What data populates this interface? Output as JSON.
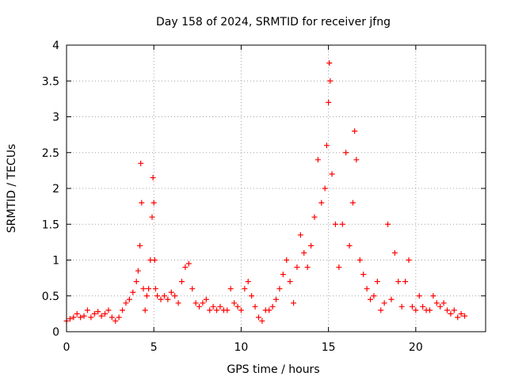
{
  "chart_data": {
    "type": "scatter",
    "title": "Day 158 of 2024, SRMTID for receiver jfng",
    "xlabel": "GPS time / hours",
    "ylabel": "SRMTID / TECUs",
    "xlim": [
      0,
      24
    ],
    "ylim": [
      0,
      4
    ],
    "xticks": [
      0,
      5,
      10,
      15,
      20
    ],
    "xtick_labels": [
      "0",
      "5",
      "10",
      "15",
      "20"
    ],
    "yticks": [
      0,
      0.5,
      1,
      1.5,
      2,
      2.5,
      3,
      3.5,
      4
    ],
    "ytick_labels": [
      "0",
      "0.5",
      "1",
      "1.5",
      "2",
      "2.5",
      "3",
      "3.5",
      "4"
    ],
    "grid": true,
    "marker": "+",
    "color": "#ff0000",
    "series": [
      {
        "name": "SRMTID",
        "x": [
          0.0,
          0.2,
          0.4,
          0.6,
          0.8,
          1.0,
          1.2,
          1.4,
          1.6,
          1.8,
          2.0,
          2.2,
          2.4,
          2.6,
          2.8,
          3.0,
          3.2,
          3.4,
          3.6,
          3.8,
          4.0,
          4.1,
          4.2,
          4.25,
          4.3,
          4.4,
          4.5,
          4.6,
          4.7,
          4.8,
          4.9,
          4.95,
          5.0,
          5.05,
          5.1,
          5.2,
          5.4,
          5.6,
          5.8,
          6.0,
          6.2,
          6.4,
          6.6,
          6.8,
          7.0,
          7.2,
          7.4,
          7.6,
          7.8,
          8.0,
          8.2,
          8.4,
          8.6,
          8.8,
          9.0,
          9.2,
          9.4,
          9.6,
          9.8,
          10.0,
          10.2,
          10.4,
          10.6,
          10.8,
          11.0,
          11.2,
          11.4,
          11.6,
          11.8,
          12.0,
          12.2,
          12.4,
          12.6,
          12.8,
          13.0,
          13.2,
          13.4,
          13.6,
          13.8,
          14.0,
          14.2,
          14.4,
          14.6,
          14.8,
          14.9,
          15.0,
          15.05,
          15.1,
          15.2,
          15.4,
          15.6,
          15.8,
          16.0,
          16.2,
          16.4,
          16.5,
          16.6,
          16.8,
          17.0,
          17.2,
          17.4,
          17.6,
          17.8,
          18.0,
          18.2,
          18.4,
          18.6,
          18.8,
          19.0,
          19.2,
          19.4,
          19.6,
          19.8,
          20.0,
          20.2,
          20.4,
          20.6,
          20.8,
          21.0,
          21.2,
          21.4,
          21.6,
          21.8,
          22.0,
          22.2,
          22.4,
          22.6,
          22.8
        ],
        "values": [
          0.15,
          0.18,
          0.2,
          0.25,
          0.2,
          0.22,
          0.3,
          0.2,
          0.25,
          0.28,
          0.22,
          0.25,
          0.3,
          0.2,
          0.15,
          0.2,
          0.3,
          0.4,
          0.45,
          0.55,
          0.7,
          0.85,
          1.2,
          2.35,
          1.8,
          0.6,
          0.3,
          0.5,
          0.6,
          1.0,
          1.6,
          2.15,
          1.8,
          1.0,
          0.6,
          0.5,
          0.45,
          0.5,
          0.45,
          0.55,
          0.5,
          0.4,
          0.7,
          0.9,
          0.95,
          0.6,
          0.4,
          0.35,
          0.4,
          0.45,
          0.3,
          0.35,
          0.3,
          0.35,
          0.3,
          0.3,
          0.6,
          0.4,
          0.35,
          0.3,
          0.6,
          0.7,
          0.5,
          0.35,
          0.2,
          0.15,
          0.3,
          0.3,
          0.35,
          0.45,
          0.6,
          0.8,
          1.0,
          0.7,
          0.4,
          0.9,
          1.35,
          1.1,
          0.9,
          1.2,
          1.6,
          2.4,
          1.8,
          2.0,
          2.6,
          3.2,
          3.75,
          3.5,
          2.2,
          1.5,
          0.9,
          1.5,
          2.5,
          1.2,
          1.8,
          2.8,
          2.4,
          1.0,
          0.8,
          0.6,
          0.45,
          0.5,
          0.7,
          0.3,
          0.4,
          1.5,
          0.45,
          1.1,
          0.7,
          0.35,
          0.7,
          1.0,
          0.35,
          0.3,
          0.5,
          0.35,
          0.3,
          0.3,
          0.5,
          0.4,
          0.35,
          0.4,
          0.3,
          0.25,
          0.3,
          0.2,
          0.25,
          0.22
        ]
      }
    ]
  }
}
